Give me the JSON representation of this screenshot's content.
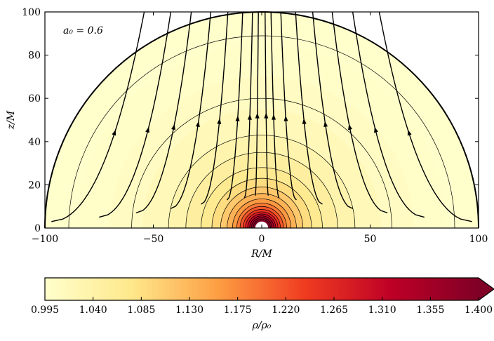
{
  "chart_data": {
    "type": "heatmap",
    "annotation": "a₀ = 0.6",
    "xlabel": "R/M",
    "ylabel": "z/M",
    "xlim": [
      -100,
      100
    ],
    "ylim": [
      0,
      100
    ],
    "xticks": [
      -100,
      -50,
      0,
      50,
      100
    ],
    "xtick_labels": [
      "−100",
      "−50",
      "0",
      "50",
      "100"
    ],
    "yticks": [
      0,
      20,
      40,
      60,
      80,
      100
    ],
    "ytick_labels": [
      "0",
      "20",
      "40",
      "60",
      "80",
      "100"
    ],
    "grid": false,
    "domain_boundary_radius": 100,
    "inner_hole_radius": 3,
    "density_contour_radii": [
      4,
      4.8,
      5.6,
      6.5,
      7.5,
      8.6,
      10,
      11.5,
      13.5,
      16,
      19,
      23,
      28,
      35,
      43,
      60,
      89
    ],
    "streamline_start_points": [
      [
        -97,
        3
      ],
      [
        -75,
        5
      ],
      [
        -58,
        7
      ],
      [
        -42,
        9
      ],
      [
        -28,
        11
      ],
      [
        -16,
        13
      ],
      [
        -8,
        14
      ],
      [
        -3,
        15
      ],
      [
        3,
        15
      ],
      [
        8,
        14
      ],
      [
        16,
        13
      ],
      [
        28,
        11
      ],
      [
        42,
        9
      ],
      [
        58,
        7
      ],
      [
        75,
        5
      ],
      [
        97,
        3
      ]
    ],
    "colorbar": {
      "label": "ρ/ρ₀",
      "min": 0.995,
      "max": 1.4,
      "extend": "max",
      "ticks": [
        "0.995",
        "1.040",
        "1.085",
        "1.130",
        "1.175",
        "1.220",
        "1.265",
        "1.310",
        "1.355",
        "1.400"
      ],
      "colormap": [
        "#ffffcc",
        "#fee88b",
        "#fd9e43",
        "#f03b20",
        "#bd0026",
        "#800026"
      ]
    }
  }
}
